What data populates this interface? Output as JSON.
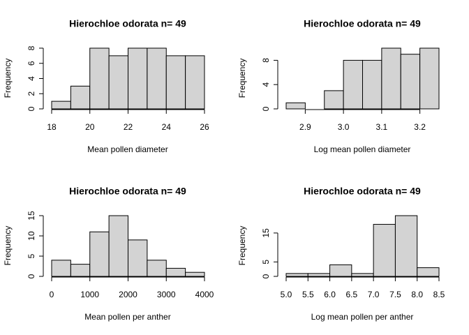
{
  "chart_data": [
    {
      "type": "histogram",
      "title": "Hierochloe odorata n= 49",
      "xlabel": "Mean pollen diameter",
      "ylabel": "Frequency",
      "color": "#d3d3d3",
      "bins": [
        18,
        19,
        20,
        21,
        22,
        23,
        24,
        25,
        26
      ],
      "values": [
        1,
        3,
        8,
        7,
        8,
        8,
        7,
        7
      ],
      "xlim": [
        18,
        26
      ],
      "ylim": [
        0,
        8
      ],
      "xticks": [
        18,
        20,
        22,
        24,
        26
      ],
      "yticks": [
        0,
        2,
        4,
        6,
        8
      ]
    },
    {
      "type": "histogram",
      "title": "Hierochloe odorata n= 49",
      "xlabel": "Log mean pollen diameter",
      "ylabel": "Frequency",
      "color": "#d3d3d3",
      "bins": [
        2.85,
        2.9,
        2.95,
        3.0,
        3.05,
        3.1,
        3.15,
        3.2,
        3.25
      ],
      "values": [
        1,
        0,
        3,
        8,
        8,
        10,
        9,
        10
      ],
      "xlim": [
        2.85,
        3.25
      ],
      "ylim": [
        0,
        10
      ],
      "xticks": [
        2.9,
        {
          "value": 3,
          "label": "3.0"
        },
        3.1,
        3.2
      ],
      "yticks": [
        0,
        4,
        8
      ]
    },
    {
      "type": "histogram",
      "title": "Hierochloe odorata n= 49",
      "xlabel": "Mean pollen per anther",
      "ylabel": "Frequency",
      "color": "#d3d3d3",
      "bins": [
        0,
        500,
        1000,
        1500,
        2000,
        2500,
        3000,
        3500,
        4000
      ],
      "values": [
        4,
        3,
        11,
        15,
        9,
        4,
        2,
        1
      ],
      "xlim": [
        0,
        4000
      ],
      "ylim": [
        0,
        15
      ],
      "xticks": [
        0,
        1000,
        2000,
        3000,
        4000
      ],
      "yticks": [
        0,
        5,
        10,
        15
      ]
    },
    {
      "type": "histogram",
      "title": "Hierochloe odorata n= 49",
      "xlabel": "Log mean pollen per anther",
      "ylabel": "Frequency",
      "color": "#d3d3d3",
      "bins": [
        5,
        5.5,
        6,
        6.5,
        7,
        7.5,
        8,
        8.5
      ],
      "values": [
        1,
        1,
        4,
        1,
        18,
        21,
        3
      ],
      "xlim": [
        5,
        8.5
      ],
      "ylim": [
        0,
        21
      ],
      "xticks": [
        {
          "value": 5,
          "label": "5.0"
        },
        5.5,
        {
          "value": 6,
          "label": "6.0"
        },
        6.5,
        {
          "value": 7,
          "label": "7.0"
        },
        7.5,
        {
          "value": 8,
          "label": "8.0"
        },
        8.5
      ],
      "yticks": [
        0,
        5,
        15
      ]
    }
  ]
}
